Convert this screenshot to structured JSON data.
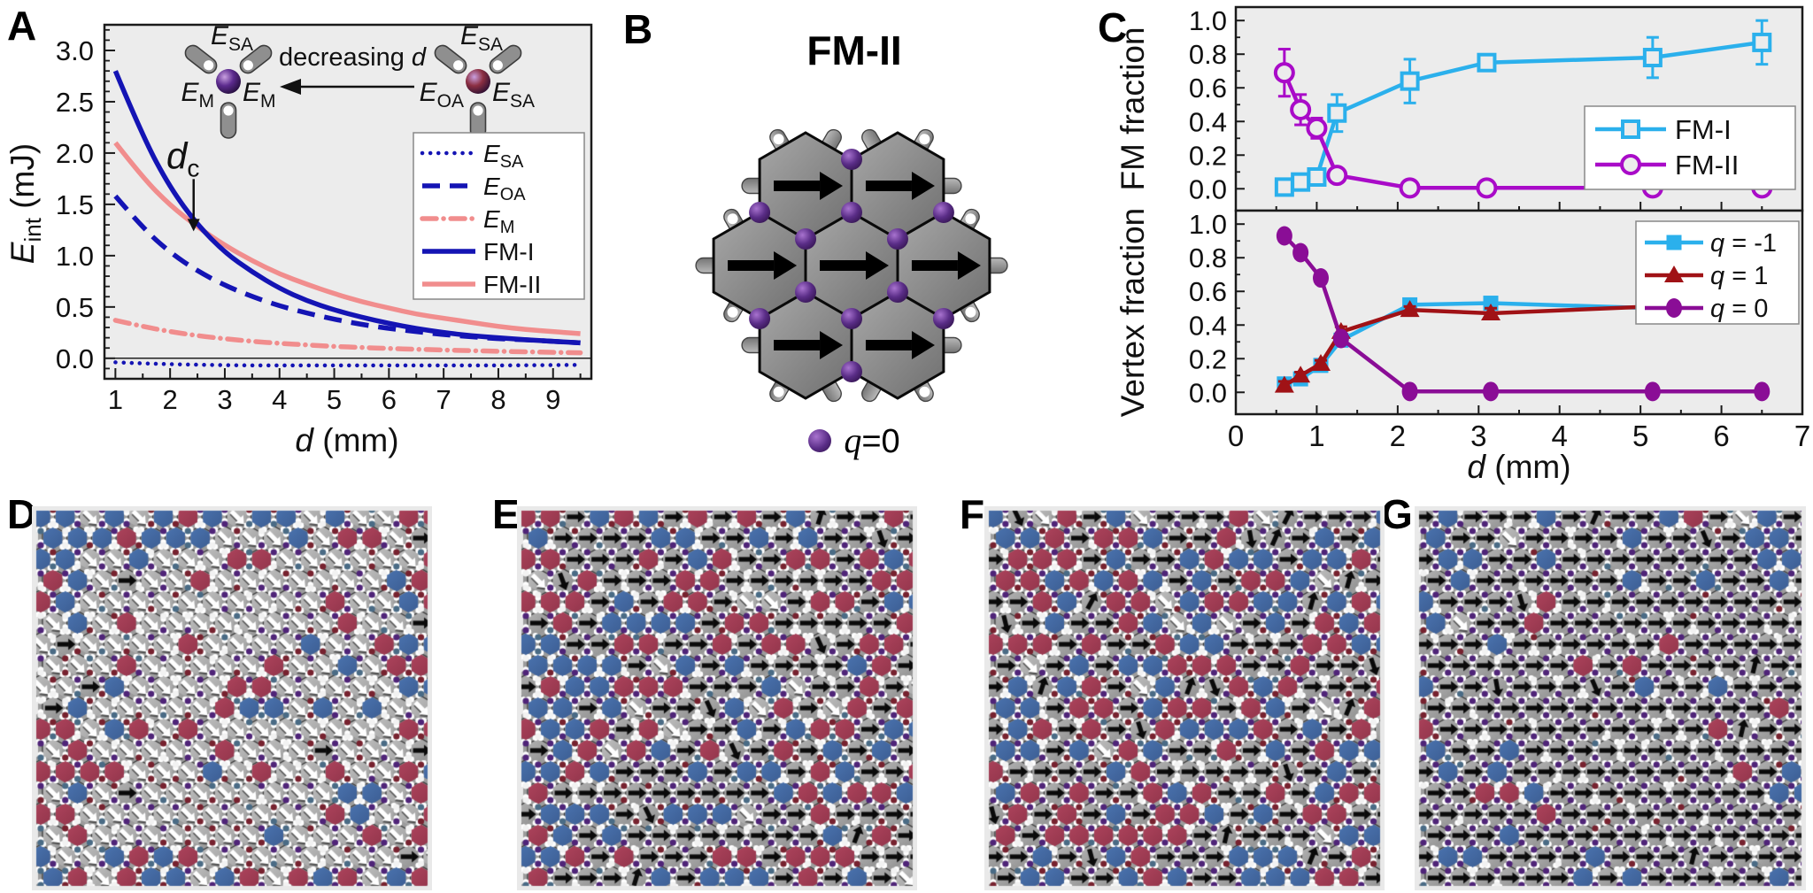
{
  "panels": {
    "A": {
      "label": "A"
    },
    "B": {
      "label": "B",
      "title": "FM-II",
      "legend_q": "q",
      "legend_rest": "=0",
      "hexagon_count": 7,
      "arrow_direction": "right"
    },
    "C": {
      "label": "C"
    },
    "D": {
      "label": "D"
    },
    "E": {
      "label": "E"
    },
    "F": {
      "label": "F"
    },
    "G": {
      "label": "G"
    }
  },
  "chart_data": [
    {
      "id": "panel-A",
      "type": "line",
      "title": "",
      "xlabel_italic": "d",
      "xlabel_rest": " (mm)",
      "ylabel_main": "E",
      "ylabel_sub": "int",
      "ylabel_rest": " (mJ)",
      "xlim": [
        0.8,
        9.7
      ],
      "ylim": [
        -0.2,
        3.25
      ],
      "xticks": [
        1,
        2,
        3,
        4,
        5,
        6,
        7,
        8,
        9
      ],
      "yticks": [
        "0.0",
        "0.5",
        "1.0",
        "1.5",
        "2.0",
        "2.5",
        "3.0"
      ],
      "grid": false,
      "legend_position": "right",
      "x": [
        1,
        1.5,
        2,
        2.5,
        3,
        3.5,
        4,
        4.5,
        5,
        5.5,
        6,
        6.5,
        7,
        7.5,
        8,
        8.5,
        9,
        9.5
      ],
      "series": [
        {
          "name": "E_SA",
          "label_main": "E",
          "label_sub": "SA",
          "color": "#1414b4",
          "style": "dotted",
          "values": [
            -0.04,
            -0.05,
            -0.058,
            -0.063,
            -0.067,
            -0.07,
            -0.07,
            -0.07,
            -0.07,
            -0.07,
            -0.07,
            -0.07,
            -0.07,
            -0.07,
            -0.07,
            -0.068,
            -0.066,
            -0.065
          ]
        },
        {
          "name": "E_OA",
          "label_main": "E",
          "label_sub": "OA",
          "color": "#1414b4",
          "style": "dashed",
          "values": [
            1.58,
            1.27,
            1.03,
            0.85,
            0.71,
            0.6,
            0.51,
            0.44,
            0.38,
            0.33,
            0.29,
            0.26,
            0.23,
            0.21,
            0.19,
            0.18,
            0.165,
            0.15
          ]
        },
        {
          "name": "E_M",
          "label_main": "E",
          "label_sub": "M",
          "color": "#f18d8d",
          "style": "dashdot",
          "values": [
            0.37,
            0.31,
            0.26,
            0.22,
            0.19,
            0.165,
            0.145,
            0.13,
            0.115,
            0.105,
            0.095,
            0.088,
            0.08,
            0.074,
            0.068,
            0.063,
            0.058,
            0.054
          ]
        },
        {
          "name": "FM-I",
          "color": "#1414b4",
          "style": "solid",
          "values": [
            2.8,
            2.16,
            1.66,
            1.3,
            1.03,
            0.84,
            0.68,
            0.56,
            0.47,
            0.4,
            0.34,
            0.29,
            0.25,
            0.22,
            0.2,
            0.18,
            0.165,
            0.15
          ]
        },
        {
          "name": "FM-II",
          "color": "#f18d8d",
          "style": "solid",
          "values": [
            2.1,
            1.76,
            1.49,
            1.28,
            1.1,
            0.95,
            0.82,
            0.72,
            0.63,
            0.55,
            0.49,
            0.43,
            0.39,
            0.35,
            0.31,
            0.28,
            0.26,
            0.24
          ]
        }
      ],
      "annotation": {
        "text_main": "d",
        "text_sub": "c",
        "x": 2.43,
        "arrow_tip_y": 1.22,
        "text_y": 1.85
      },
      "inset": {
        "arrow_label_normal": "decreasing ",
        "arrow_label_italic": "d",
        "left_trimer": {
          "top_main": "E",
          "top_sub": "SA",
          "left_main": "E",
          "left_sub": "M",
          "right_main": "E",
          "right_sub": "M",
          "center_color": "#5c2b8e"
        },
        "right_trimer": {
          "top_main": "E",
          "top_sub": "SA",
          "left_main": "E",
          "left_sub": "OA",
          "right_main": "E",
          "right_sub": "SA",
          "center_color": "#8c2f42"
        }
      }
    },
    {
      "id": "panel-C-top",
      "type": "line",
      "ylabel": "FM fraction",
      "xlim": [
        0,
        7
      ],
      "ylim": [
        -0.13,
        1.08
      ],
      "yticks": [
        "0.0",
        "0.2",
        "0.4",
        "0.6",
        "0.8",
        "1.0"
      ],
      "xticks": [
        0,
        1,
        2,
        3,
        4,
        5,
        6,
        7
      ],
      "xtick_labels_hidden": true,
      "grid": false,
      "legend_position": "right-middle",
      "series": [
        {
          "name": "FM-I",
          "color": "#2bb0ec",
          "marker": "open-square",
          "x": [
            0.6,
            0.8,
            1.0,
            1.25,
            2.15,
            3.1,
            5.15,
            6.5
          ],
          "y": [
            0.01,
            0.04,
            0.07,
            0.45,
            0.64,
            0.75,
            0.78,
            0.87
          ],
          "yerr": [
            0.015,
            0.015,
            0.03,
            0.11,
            0.13,
            0.025,
            0.12,
            0.13
          ]
        },
        {
          "name": "FM-II",
          "color": "#a90bc8",
          "marker": "open-circle",
          "x": [
            0.6,
            0.8,
            1.0,
            1.25,
            2.15,
            3.1,
            5.15,
            6.5
          ],
          "y": [
            0.69,
            0.47,
            0.36,
            0.08,
            0.005,
            0.005,
            0.005,
            0.005
          ],
          "yerr": [
            0.14,
            0.09,
            0.06,
            0.03,
            0,
            0,
            0,
            0
          ]
        }
      ]
    },
    {
      "id": "panel-C-bottom",
      "type": "line",
      "xlabel_italic": "d",
      "xlabel_rest": " (mm)",
      "ylabel": "Vertex fraction",
      "xlim": [
        0,
        7
      ],
      "ylim": [
        -0.13,
        1.08
      ],
      "xticks": [
        0,
        1,
        2,
        3,
        4,
        5,
        6,
        7
      ],
      "yticks": [
        "0.0",
        "0.2",
        "0.4",
        "0.6",
        "0.8",
        "1.0"
      ],
      "grid": false,
      "legend_position": "right-top",
      "series": [
        {
          "name": "q = -1",
          "name_italic": "q",
          "name_rest": " = -1",
          "color": "#2bb0ec",
          "marker": "filled-square",
          "x": [
            0.6,
            0.8,
            1.05,
            1.3,
            2.15,
            3.15,
            5.15,
            6.5
          ],
          "y": [
            0.05,
            0.08,
            0.16,
            0.31,
            0.52,
            0.53,
            0.5,
            0.52
          ],
          "yerr": [
            0.02,
            0.02,
            0.02,
            0.03,
            0.02,
            0.03,
            0.03,
            0.02
          ]
        },
        {
          "name": "q = 1",
          "name_italic": "q",
          "name_rest": " = 1",
          "color": "#a01216",
          "marker": "filled-triangle",
          "x": [
            0.6,
            0.8,
            1.05,
            1.3,
            2.15,
            3.15,
            5.15,
            6.5
          ],
          "y": [
            0.04,
            0.1,
            0.17,
            0.36,
            0.49,
            0.47,
            0.51,
            0.49
          ],
          "yerr": [
            0.025,
            0.02,
            0.02,
            0.03,
            0.02,
            0.03,
            0.03,
            0.02
          ]
        },
        {
          "name": "q = 0",
          "name_italic": "q",
          "name_rest": " = 0",
          "color": "#8a0d96",
          "marker": "filled-circle",
          "x": [
            0.6,
            0.8,
            1.05,
            1.3,
            2.15,
            3.15,
            5.15,
            6.5
          ],
          "y": [
            0.93,
            0.83,
            0.68,
            0.32,
            0.005,
            0.005,
            0.005,
            0.005
          ],
          "yerr": [
            0.03,
            0.03,
            0.03,
            0.03,
            0,
            0,
            0,
            0
          ]
        }
      ]
    }
  ],
  "lattices": {
    "D": {
      "seed": 11,
      "gray_arrow": "white-diagonal",
      "border_weights": {
        "red": 0.3,
        "blue": 0.3,
        "grayW": 0.37,
        "grayB": 0.03
      },
      "interior_weights": {
        "red": 0.12,
        "blue": 0.12,
        "grayW": 0.74,
        "grayB": 0.02
      },
      "tilt_prob": 0.0,
      "vertex_colors": {
        "purple": 0.3,
        "maroon": 0.25,
        "slate": 0.15,
        "white": 0.3
      }
    },
    "E": {
      "seed": 23,
      "gray_arrow": "black-right",
      "border_weights": {
        "red": 0.28,
        "blue": 0.27,
        "grayW": 0.04,
        "grayB": 0.41
      },
      "interior_weights": {
        "red": 0.24,
        "blue": 0.23,
        "grayW": 0.05,
        "grayB": 0.48
      },
      "tilt_prob": 0.08,
      "vertex_colors": {
        "purple": 0.45,
        "maroon": 0.2,
        "slate": 0.1,
        "white": 0.25
      }
    },
    "F": {
      "seed": 37,
      "gray_arrow": "black-right",
      "border_weights": {
        "red": 0.3,
        "blue": 0.28,
        "grayW": 0.03,
        "grayB": 0.39
      },
      "interior_weights": {
        "red": 0.27,
        "blue": 0.25,
        "grayW": 0.04,
        "grayB": 0.44
      },
      "tilt_prob": 0.14,
      "vertex_colors": {
        "purple": 0.45,
        "maroon": 0.22,
        "slate": 0.1,
        "white": 0.23
      }
    },
    "G": {
      "seed": 5,
      "gray_arrow": "black-right",
      "border_weights": {
        "red": 0.05,
        "blue": 0.22,
        "grayW": 0.01,
        "grayB": 0.72
      },
      "interior_weights": {
        "red": 0.035,
        "blue": 0.045,
        "grayW": 0.005,
        "grayB": 0.915
      },
      "tilt_prob": 0.04,
      "vertex_colors": {
        "purple": 0.72,
        "maroon": 0.06,
        "slate": 0.05,
        "white": 0.17
      }
    },
    "colors": {
      "red": "#a23c54",
      "blue": "#4068a4",
      "gray_light": "#c6c6c6",
      "gray_dark": "#8a8a8a",
      "band": "#9c9c9c",
      "purple_dot": "#4f2478",
      "maroon_dot": "#77222f",
      "slate_dot": "#4a6b85",
      "bg": "#e9e9e9"
    }
  },
  "style": {
    "plot_bg": "#ececec",
    "frame": "#1a1a1a"
  }
}
